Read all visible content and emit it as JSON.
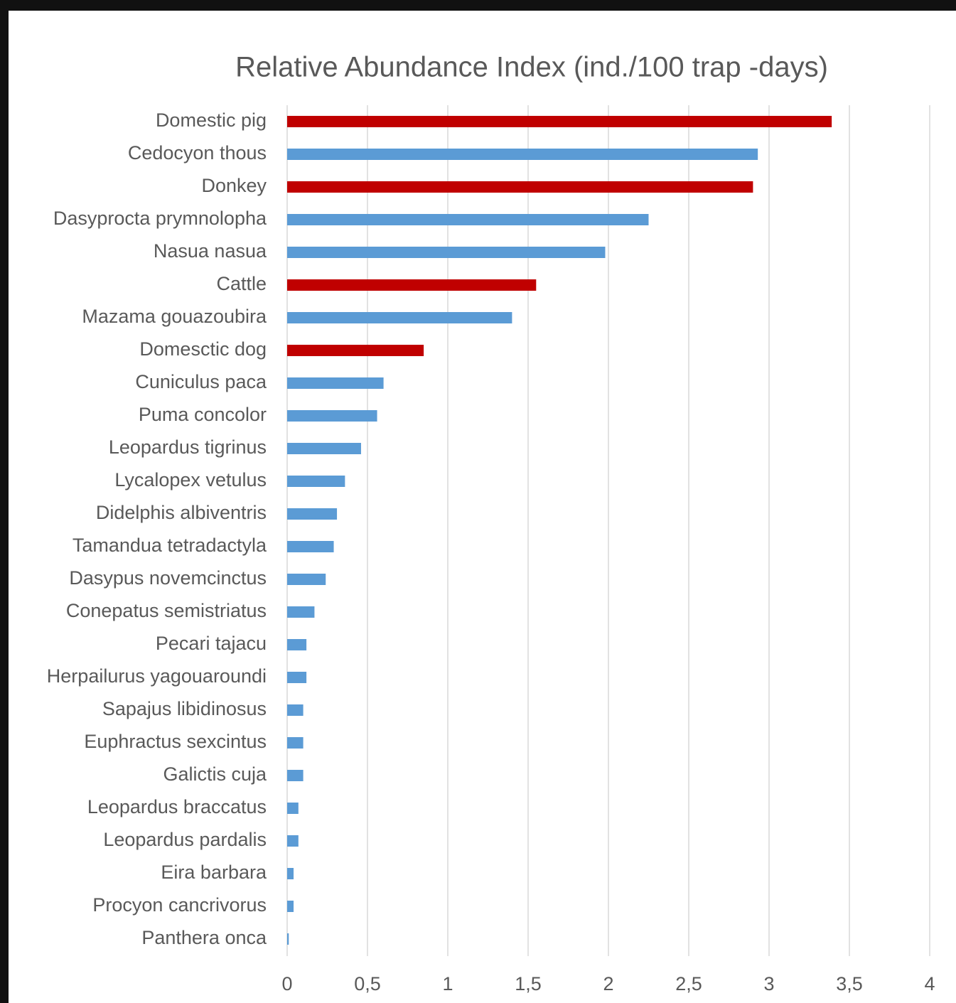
{
  "chart_data": {
    "type": "barh",
    "title": "Relative Abundance Index (ind./100 trap -days)",
    "categories": [
      "Domestic pig",
      "Cedocyon thous",
      "Donkey",
      "Dasyprocta prymnolopha",
      "Nasua nasua",
      "Cattle",
      "Mazama gouazoubira",
      "Domesctic dog",
      "Cuniculus paca",
      "Puma concolor",
      "Leopardus tigrinus",
      "Lycalopex vetulus",
      "Didelphis albiventris",
      "Tamandua tetradactyla",
      "Dasypus novemcinctus",
      "Conepatus semistriatus",
      "Pecari tajacu",
      "Herpailurus yagouaroundi",
      "Sapajus libidinosus",
      "Euphractus sexcintus",
      "Galictis cuja",
      "Leopardus braccatus",
      "Leopardus pardalis",
      "Eira barbara",
      "Procyon cancrivorus",
      "Panthera onca"
    ],
    "values": [
      3.39,
      2.93,
      2.9,
      2.25,
      1.98,
      1.55,
      1.4,
      0.85,
      0.6,
      0.56,
      0.46,
      0.36,
      0.31,
      0.29,
      0.24,
      0.17,
      0.12,
      0.12,
      0.1,
      0.1,
      0.1,
      0.07,
      0.07,
      0.04,
      0.04,
      0.01
    ],
    "colors": [
      "#c00000",
      "#5b9bd5",
      "#c00000",
      "#5b9bd5",
      "#5b9bd5",
      "#c00000",
      "#5b9bd5",
      "#c00000",
      "#5b9bd5",
      "#5b9bd5",
      "#5b9bd5",
      "#5b9bd5",
      "#5b9bd5",
      "#5b9bd5",
      "#5b9bd5",
      "#5b9bd5",
      "#5b9bd5",
      "#5b9bd5",
      "#5b9bd5",
      "#5b9bd5",
      "#5b9bd5",
      "#5b9bd5",
      "#5b9bd5",
      "#5b9bd5",
      "#5b9bd5",
      "#5b9bd5"
    ],
    "xlim": [
      0,
      4
    ],
    "xticks": [
      0,
      {
        "value": 0.5,
        "label": "0,5"
      },
      1,
      {
        "value": 1.5,
        "label": "1,5"
      },
      2,
      {
        "value": 2.5,
        "label": "2,5"
      },
      3,
      {
        "value": 3.5,
        "label": "3,5"
      },
      4
    ],
    "grid": true
  }
}
